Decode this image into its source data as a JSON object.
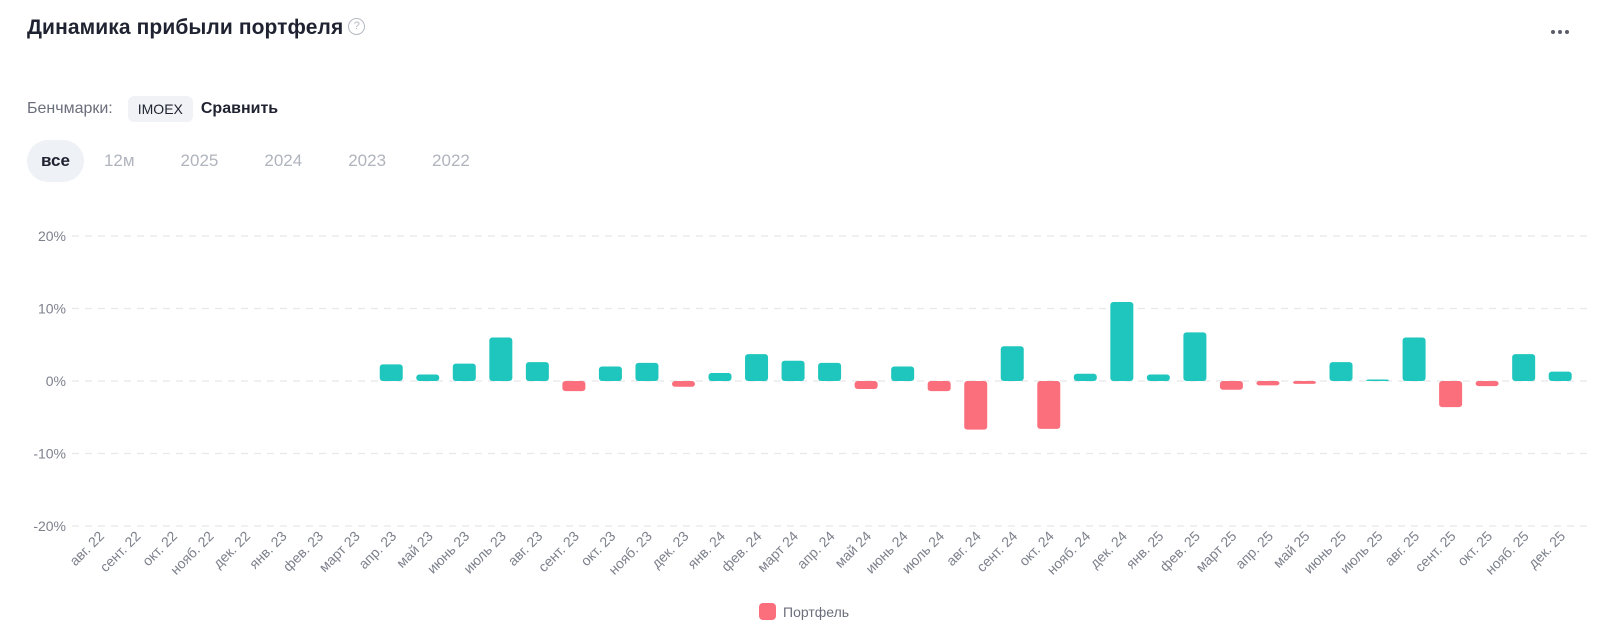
{
  "header": {
    "title": "Динамика прибыли портфеля",
    "help_icon": "?",
    "more_icon": "more-horizontal-icon"
  },
  "benchmarks": {
    "label": "Бенчмарки:",
    "chip": "IMOEX",
    "compare_label": "Сравнить"
  },
  "periods": [
    {
      "label": "все",
      "active": true
    },
    {
      "label": "12м",
      "active": false
    },
    {
      "label": "2025",
      "active": false
    },
    {
      "label": "2024",
      "active": false
    },
    {
      "label": "2023",
      "active": false
    },
    {
      "label": "2022",
      "active": false
    }
  ],
  "colors": {
    "positive": "#1ec6bd",
    "negative": "#fb6f7d",
    "grid": "#e6e8ec",
    "axis_text": "#7d818c"
  },
  "chart_data": {
    "type": "bar",
    "title": "",
    "xlabel": "",
    "ylabel": "",
    "ylim": [
      -20,
      20
    ],
    "yticks": [
      20,
      10,
      0,
      -10,
      -20
    ],
    "ytick_labels": [
      "20%",
      "10%",
      "0%",
      "-10%",
      "-20%"
    ],
    "grid": true,
    "legend_position": "bottom",
    "categories": [
      "авг. 22",
      "сент. 22",
      "окт. 22",
      "нояб. 22",
      "дек. 22",
      "янв. 23",
      "фев. 23",
      "март 23",
      "апр. 23",
      "май 23",
      "июнь 23",
      "июль 23",
      "авг. 23",
      "сент. 23",
      "окт. 23",
      "нояб. 23",
      "дек. 23",
      "янв. 24",
      "фев. 24",
      "март 24",
      "апр. 24",
      "май 24",
      "июнь 24",
      "июль 24",
      "авг. 24",
      "сент. 24",
      "окт. 24",
      "нояб. 24",
      "дек. 24",
      "янв. 25",
      "фев. 25",
      "март 25",
      "апр. 25",
      "май 25",
      "июнь 25",
      "июль 25",
      "авг. 25",
      "сент. 25",
      "окт. 25",
      "нояб. 25",
      "дек. 25"
    ],
    "series": [
      {
        "name": "Портфель",
        "values": [
          null,
          null,
          null,
          null,
          null,
          null,
          null,
          null,
          2.3,
          0.9,
          2.4,
          6.0,
          2.6,
          -1.4,
          2.0,
          2.5,
          -0.8,
          1.1,
          3.7,
          2.8,
          2.5,
          -1.1,
          2.0,
          -1.4,
          -6.7,
          4.8,
          -6.6,
          1.0,
          10.9,
          0.9,
          6.7,
          -1.2,
          -0.6,
          -0.4,
          2.6,
          0.2,
          6.0,
          -3.6,
          -0.7,
          3.7,
          1.3
        ]
      }
    ]
  }
}
